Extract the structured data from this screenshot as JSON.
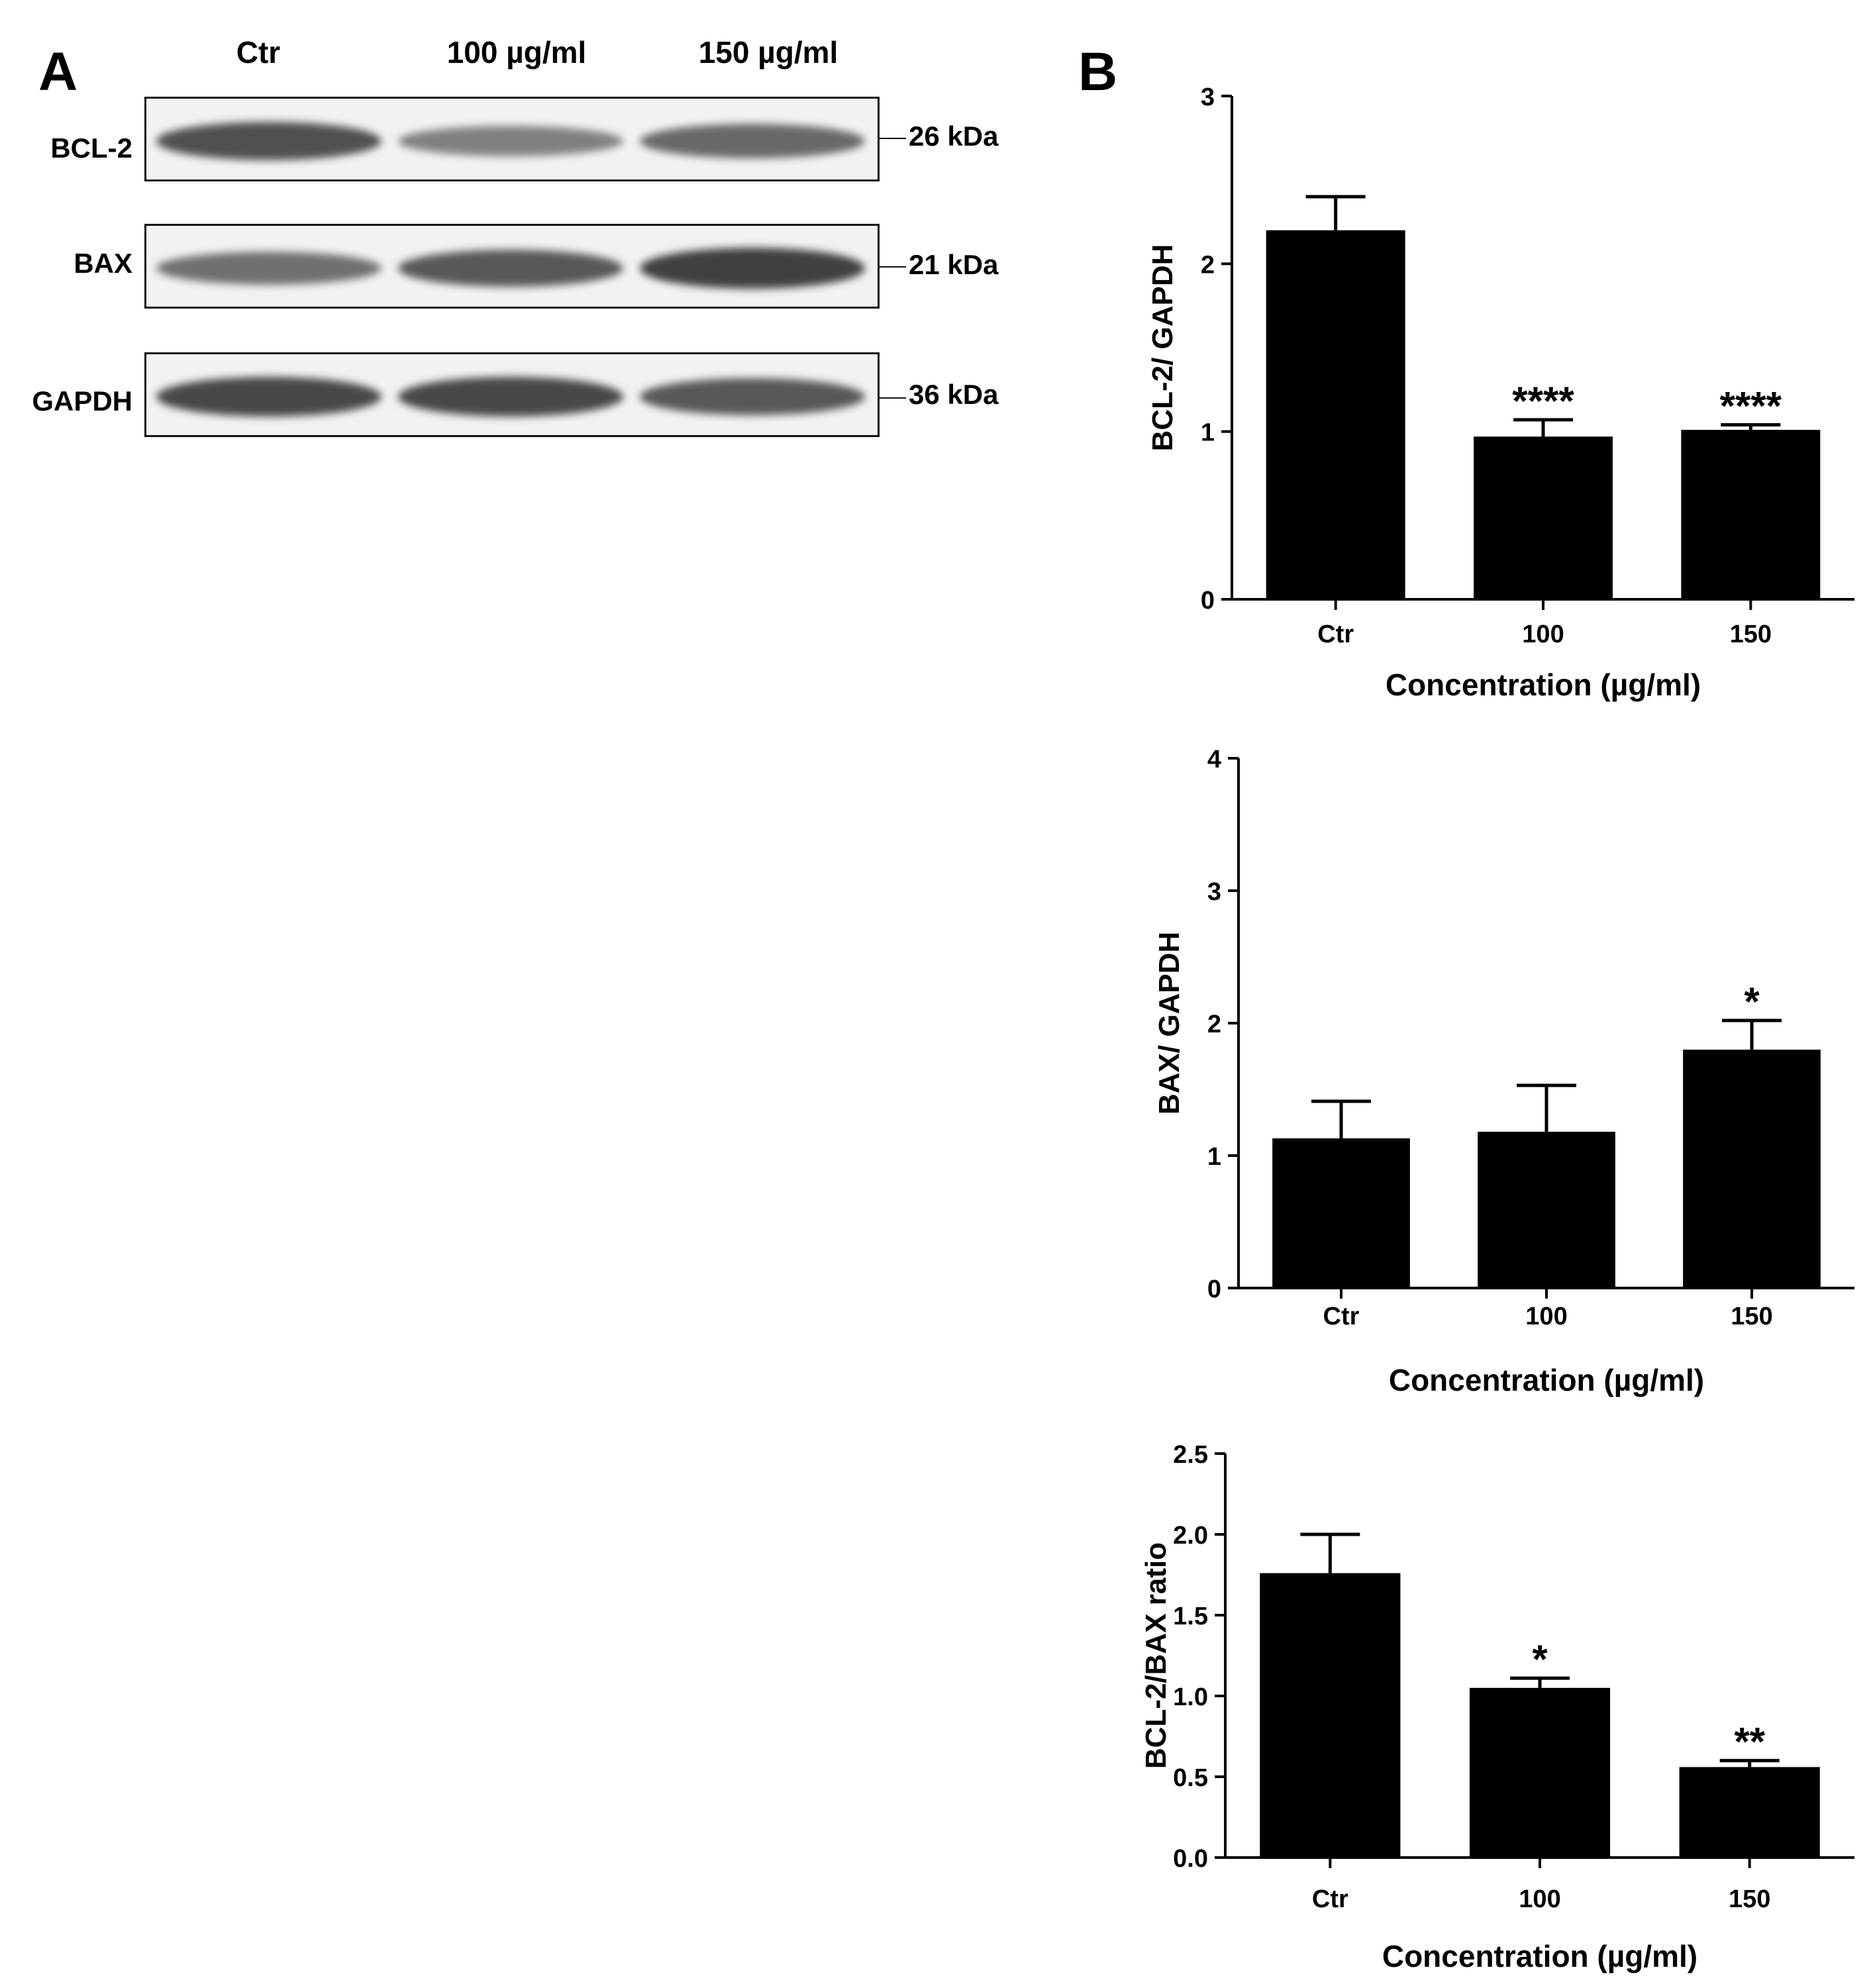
{
  "panel_a": {
    "letter": "A",
    "lanes": [
      "Ctr",
      "100 µg/ml",
      "150 µg/ml"
    ],
    "blots": [
      {
        "label": "BCL-2",
        "kda": "26 kDa",
        "intensity": [
          0.75,
          0.45,
          0.6
        ]
      },
      {
        "label": "BAX",
        "kda": "21 kDa",
        "intensity": [
          0.55,
          0.7,
          0.85
        ]
      },
      {
        "label": "GAPDH",
        "kda": "36 kDa",
        "intensity": [
          0.8,
          0.8,
          0.7
        ]
      }
    ]
  },
  "panel_b": {
    "letter": "B"
  },
  "chart_data": [
    {
      "type": "bar",
      "categories": [
        "Ctr",
        "100",
        "150"
      ],
      "values": [
        2.2,
        0.97,
        1.01
      ],
      "errors": [
        0.2,
        0.1,
        0.03
      ],
      "significance": [
        "",
        "****",
        "****"
      ],
      "ylabel": "BCL-2/ GAPDH",
      "xlabel": "Concentration (µg/ml)",
      "ylim": [
        0,
        3
      ],
      "yticks": [
        "0",
        "1",
        "2",
        "3"
      ],
      "bar_color": "#000000"
    },
    {
      "type": "bar",
      "categories": [
        "Ctr",
        "100",
        "150"
      ],
      "values": [
        1.13,
        1.18,
        1.8
      ],
      "errors": [
        0.28,
        0.35,
        0.22
      ],
      "significance": [
        "",
        "",
        "*"
      ],
      "ylabel": "BAX/ GAPDH",
      "xlabel": "Concentration (µg/ml)",
      "ylim": [
        0,
        4
      ],
      "yticks": [
        "0",
        "1",
        "2",
        "3",
        "4"
      ],
      "bar_color": "#000000"
    },
    {
      "type": "bar",
      "categories": [
        "Ctr",
        "100",
        "150"
      ],
      "values": [
        1.76,
        1.05,
        0.56
      ],
      "errors": [
        0.24,
        0.06,
        0.04
      ],
      "significance": [
        "",
        "*",
        "**"
      ],
      "ylabel": "BCL-2/BAX ratio",
      "xlabel": "Concentration (µg/ml)",
      "ylim": [
        0,
        2.5
      ],
      "yticks": [
        "0.0",
        "0.5",
        "1.0",
        "1.5",
        "2.0",
        "2.5"
      ],
      "bar_color": "#000000"
    }
  ]
}
